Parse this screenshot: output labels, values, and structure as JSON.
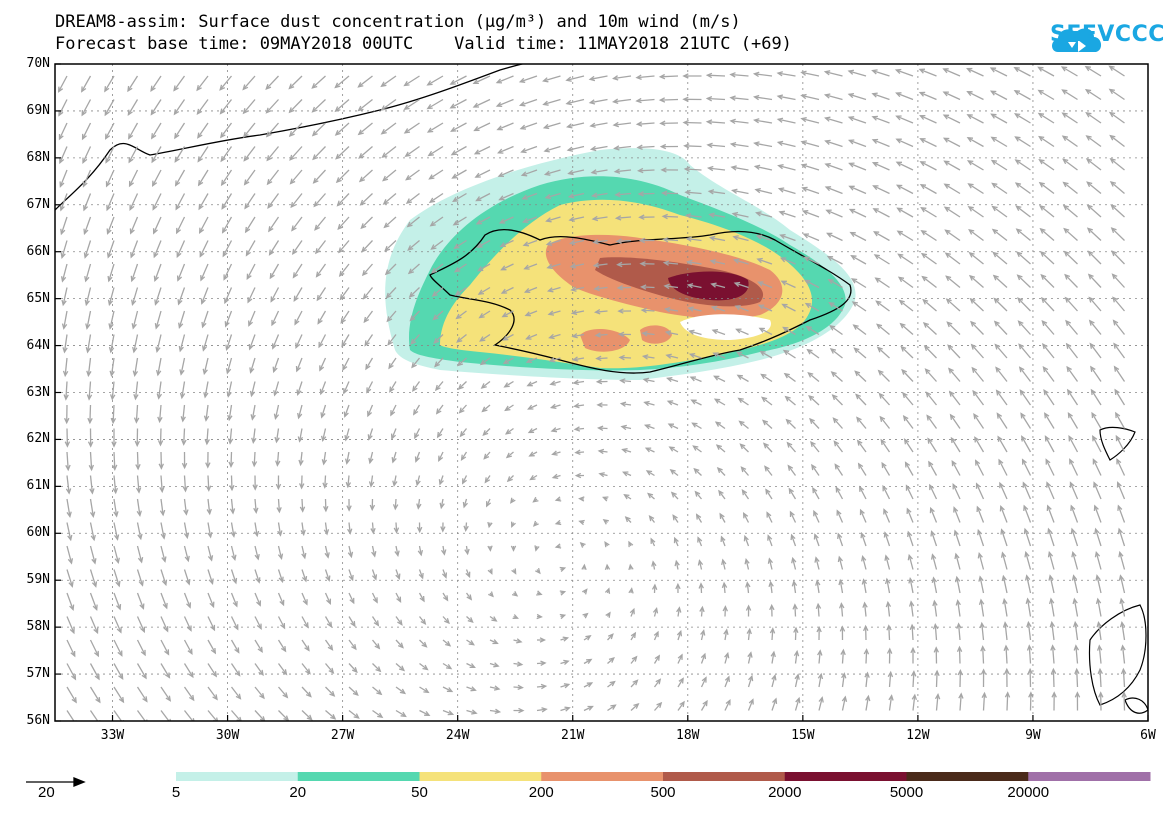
{
  "title": {
    "line1": "DREAM8-assim: Surface dust concentration (μg/m³) and 10m wind (m/s)",
    "line2": "Forecast base time: 09MAY2018 00UTC    Valid time: 11MAY2018 21UTC (+69)"
  },
  "logo": {
    "text": "SEEVCCC",
    "icon": "cloud-icon",
    "color": "#1aa7e2"
  },
  "axes": {
    "lat_labels": [
      "70N",
      "69N",
      "68N",
      "67N",
      "66N",
      "65N",
      "64N",
      "63N",
      "62N",
      "61N",
      "60N",
      "59N",
      "58N",
      "57N",
      "56N"
    ],
    "lon_labels": [
      "33W",
      "30W",
      "27W",
      "24W",
      "21W",
      "18W",
      "15W",
      "12W",
      "9W",
      "6W"
    ],
    "lat_range": [
      56,
      70
    ],
    "lon_range": [
      -34.5,
      -6
    ]
  },
  "colorbar": {
    "colors": [
      "#c4f0e8",
      "#55d8b0",
      "#f5e27a",
      "#e8926c",
      "#b05a4a",
      "#7a1030",
      "#4a2a1a",
      "#a070a8"
    ],
    "labels": [
      "5",
      "20",
      "50",
      "200",
      "500",
      "2000",
      "5000",
      "20000"
    ]
  },
  "wind_reference": {
    "label": "20"
  }
}
